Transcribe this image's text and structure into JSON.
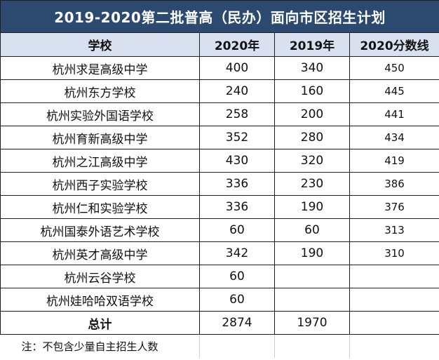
{
  "title": "2019-2020第二批普高（民办）面向市区招生计划",
  "headers": {
    "school": "学校",
    "y2020": "2020年",
    "y2019": "2019年",
    "score2020": "2020分数线"
  },
  "rows": [
    {
      "school": "杭州求是高级中学",
      "y2020": "400",
      "y2019": "340",
      "score": "450"
    },
    {
      "school": "杭州东方学校",
      "y2020": "240",
      "y2019": "160",
      "score": "445"
    },
    {
      "school": "杭州实验外国语学校",
      "y2020": "258",
      "y2019": "200",
      "score": "441"
    },
    {
      "school": "杭州育新高级中学",
      "y2020": "352",
      "y2019": "280",
      "score": "434"
    },
    {
      "school": "杭州之江高级中学",
      "y2020": "430",
      "y2019": "320",
      "score": "419"
    },
    {
      "school": "杭州西子实验学校",
      "y2020": "336",
      "y2019": "230",
      "score": "386"
    },
    {
      "school": "杭州仁和实验学校",
      "y2020": "336",
      "y2019": "190",
      "score": "376"
    },
    {
      "school": "杭州国泰外语艺术学校",
      "y2020": "60",
      "y2019": "60",
      "score": "313"
    },
    {
      "school": "杭州英才高级中学",
      "y2020": "342",
      "y2019": "190",
      "score": "310"
    },
    {
      "school": "杭州云谷学校",
      "y2020": "60",
      "y2019": "",
      "score": ""
    },
    {
      "school": "杭州娃哈哈双语学校",
      "y2020": "60",
      "y2019": "",
      "score": ""
    }
  ],
  "total": {
    "label": "总计",
    "y2020": "2874",
    "y2019": "1970",
    "score": ""
  },
  "note": "注：不包含少量自主招生人数",
  "colors": {
    "title_bg": "#2c4a6f",
    "title_text": "#ffffff",
    "header_bg": "#d9e1f0"
  }
}
